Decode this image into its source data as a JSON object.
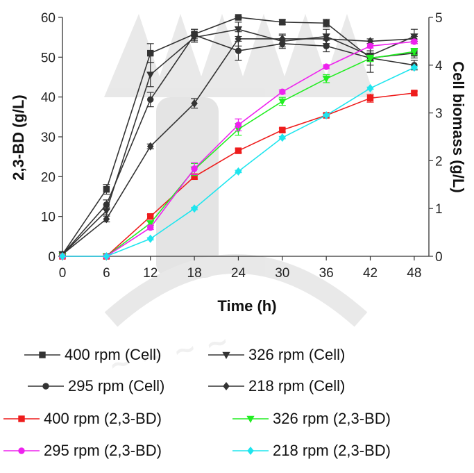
{
  "chart_data": {
    "type": "line",
    "x": [
      0,
      6,
      12,
      18,
      24,
      30,
      36,
      42,
      48
    ],
    "xlabel": "Time (h)",
    "ylabel_left": "2,3-BD (g/L)",
    "ylabel_right": "Cell biomass (g/L)",
    "xlim": [
      0,
      50
    ],
    "ylim_left": [
      0,
      60
    ],
    "ylim_right": [
      0,
      5
    ],
    "xticks": [
      "0",
      "6",
      "12",
      "18",
      "24",
      "30",
      "36",
      "42",
      "48"
    ],
    "yticks_left": [
      "0",
      "10",
      "20",
      "30",
      "40",
      "50",
      "60"
    ],
    "yticks_right": [
      "0",
      "1",
      "2",
      "3",
      "4",
      "5"
    ],
    "grid": false,
    "legend_position": "bottom",
    "series": [
      {
        "name": "400 rpm (Cell)",
        "axis": "right",
        "color": "#333333",
        "marker": "square",
        "values": [
          0.04,
          1.4,
          4.25,
          4.65,
          5.0,
          4.9,
          4.88,
          4.15,
          4.25
        ],
        "err": [
          0.02,
          0.1,
          0.2,
          0.1,
          0.02,
          0.05,
          0.08,
          0.15,
          0.1
        ]
      },
      {
        "name": "326 rpm (Cell)",
        "axis": "right",
        "color": "#333333",
        "marker": "triangle-down",
        "values": [
          0.04,
          0.95,
          3.8,
          4.58,
          4.75,
          4.5,
          4.6,
          4.2,
          4.6
        ],
        "err": [
          0.02,
          0.08,
          0.25,
          0.1,
          0.15,
          0.12,
          0.15,
          0.1,
          0.15
        ]
      },
      {
        "name": "295 rpm (Cell)",
        "axis": "right",
        "color": "#333333",
        "marker": "circle",
        "values": [
          0.04,
          1.08,
          3.28,
          4.63,
          4.3,
          4.45,
          4.4,
          4.15,
          4.0
        ],
        "err": [
          0.02,
          0.1,
          0.15,
          0.12,
          0.2,
          0.1,
          0.12,
          0.3,
          0.1
        ]
      },
      {
        "name": "218 rpm (Cell)",
        "axis": "right",
        "color": "#333333",
        "marker": "diamond",
        "values": [
          0.04,
          0.78,
          2.3,
          3.2,
          4.55,
          4.55,
          4.55,
          4.5,
          4.55
        ],
        "err": [
          0.02,
          0.06,
          0.05,
          0.1,
          0.15,
          0.1,
          0.1,
          0.05,
          0.05
        ]
      },
      {
        "name": "400 rpm (2,3-BD)",
        "axis": "left",
        "color": "#ee1c1c",
        "marker": "square",
        "values": [
          0,
          0,
          10.0,
          20.0,
          26.5,
          31.7,
          35.4,
          39.7,
          41.0
        ],
        "err": [
          0,
          0,
          0.5,
          0.6,
          0.5,
          0.5,
          0.4,
          1.0,
          0.5
        ]
      },
      {
        "name": "326 rpm (2,3-BD)",
        "axis": "left",
        "color": "#22ee22",
        "marker": "triangle-down",
        "values": [
          0,
          0,
          8.3,
          21.8,
          31.9,
          38.9,
          44.6,
          49.7,
          51.4
        ],
        "err": [
          0,
          0,
          0.5,
          1.5,
          1.5,
          1.0,
          1.0,
          0.8,
          0.8
        ]
      },
      {
        "name": "295 rpm (2,3-BD)",
        "axis": "left",
        "color": "#ee22ee",
        "marker": "circle",
        "values": [
          0,
          0,
          7.2,
          22.0,
          33.0,
          41.3,
          47.6,
          52.8,
          53.9
        ],
        "err": [
          0,
          0,
          0.5,
          1.5,
          1.5,
          0.5,
          0.5,
          0.5,
          0.5
        ]
      },
      {
        "name": "218 rpm (2,3-BD)",
        "axis": "left",
        "color": "#1ee5ee",
        "marker": "diamond",
        "values": [
          0,
          0,
          4.4,
          12.0,
          21.3,
          29.8,
          35.4,
          42.2,
          47.4
        ],
        "err": [
          0,
          0,
          0.3,
          0.3,
          0.3,
          0.3,
          0.3,
          0.3,
          0.3
        ]
      }
    ]
  }
}
